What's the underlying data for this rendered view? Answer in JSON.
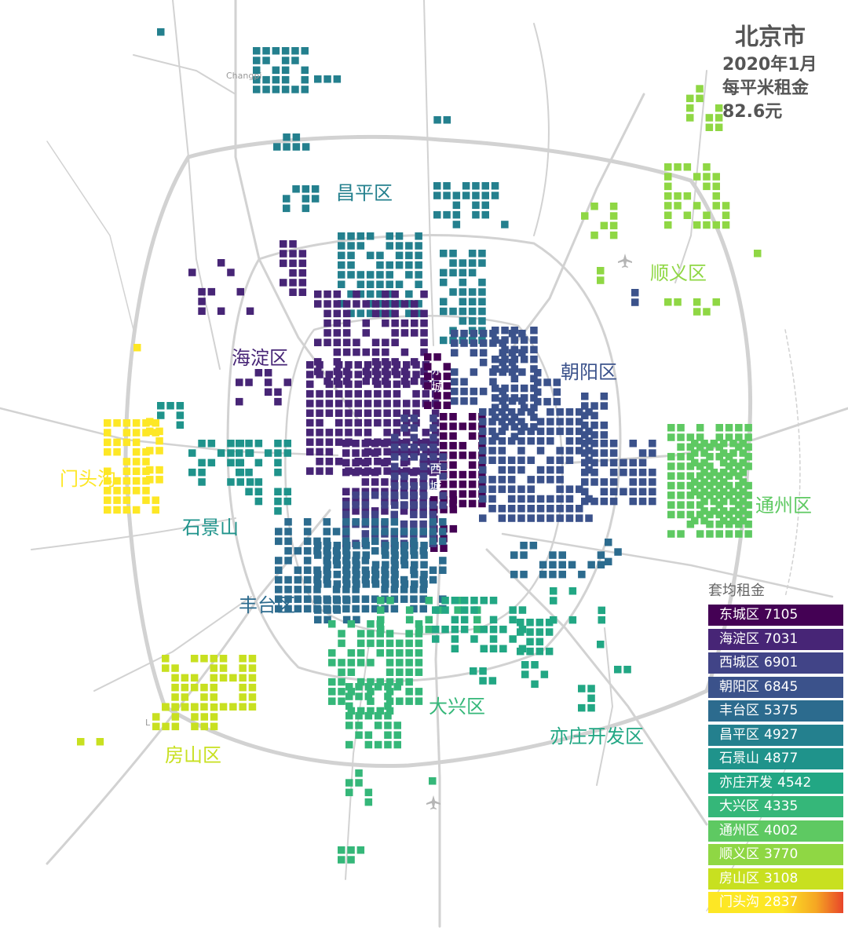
{
  "title": {
    "city": "北京市",
    "date": "2020年1月",
    "metric": "每平米租金",
    "value": "82.6元"
  },
  "legend": {
    "title": "套均租金",
    "items": [
      {
        "name": "东城区",
        "value": "7105",
        "color": "#440154"
      },
      {
        "name": "海淀区",
        "value": "7031",
        "color": "#472576"
      },
      {
        "name": "西城区",
        "value": "6901",
        "color": "#414487"
      },
      {
        "name": "朝阳区",
        "value": "6845",
        "color": "#3b528b"
      },
      {
        "name": "丰台区",
        "value": "5375",
        "color": "#2c6b8e"
      },
      {
        "name": "昌平区",
        "value": "4927",
        "color": "#24808e"
      },
      {
        "name": "石景山",
        "value": "4877",
        "color": "#1f938b"
      },
      {
        "name": "亦庄开发",
        "value": "4542",
        "color": "#22a784"
      },
      {
        "name": "大兴区",
        "value": "4335",
        "color": "#35b779"
      },
      {
        "name": "通州区",
        "value": "4002",
        "color": "#5ec962"
      },
      {
        "name": "顺义区",
        "value": "3770",
        "color": "#8fd744"
      },
      {
        "name": "房山区",
        "value": "3108",
        "color": "#c8e020"
      },
      {
        "name": "门头沟",
        "value": "2837",
        "color": "#fde725"
      }
    ]
  },
  "districts": [
    {
      "label": "昌平区",
      "color": "#24808e"
    },
    {
      "label": "顺义区",
      "color": "#8fd744"
    },
    {
      "label": "海淀区",
      "color": "#472576"
    },
    {
      "label": "朝阳区",
      "color": "#3b528b"
    },
    {
      "label": "门头沟",
      "color": "#fde725"
    },
    {
      "label": "石景山",
      "color": "#1f938b"
    },
    {
      "label": "通州区",
      "color": "#5ec962"
    },
    {
      "label": "丰台区",
      "color": "#2c6b8e"
    },
    {
      "label": "大兴区",
      "color": "#35b779"
    },
    {
      "label": "亦庄开发区",
      "color": "#22a784"
    },
    {
      "label": "房山区",
      "color": "#c8e020"
    }
  ],
  "inner_labels": [
    {
      "label": "东城"
    },
    {
      "label": "西城"
    }
  ],
  "basemap_labels": {
    "changping": "Changpi",
    "liangxiang": "L"
  }
}
